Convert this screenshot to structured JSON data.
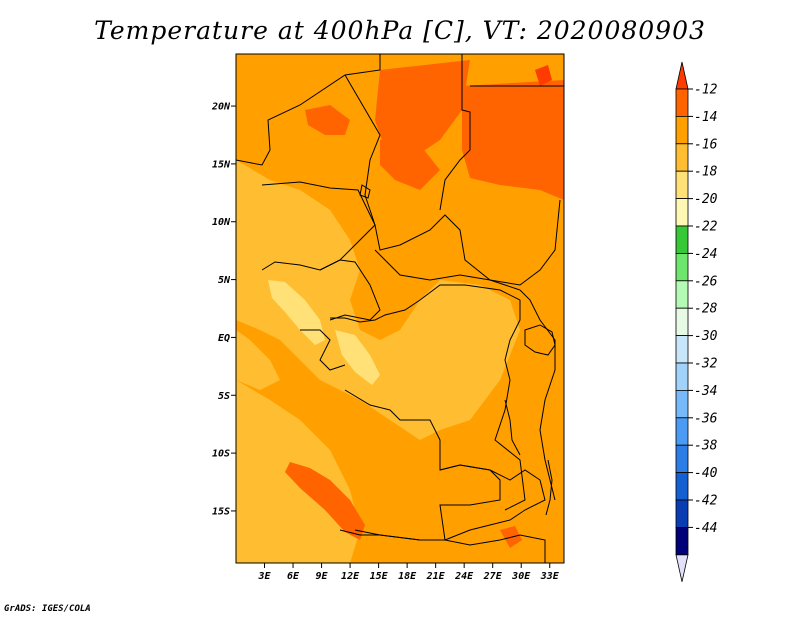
{
  "title": "Temperature at 400hPa [C], VT: 2020080903",
  "credit": "GrADS: IGES/COLA",
  "map": {
    "lat_range": [
      -19.5,
      24.5
    ],
    "lon_range": [
      0,
      34.5
    ],
    "lat_ticks": [
      {
        "value": 20,
        "label": "20N"
      },
      {
        "value": 15,
        "label": "15N"
      },
      {
        "value": 10,
        "label": "10N"
      },
      {
        "value": 5,
        "label": "5N"
      },
      {
        "value": 0,
        "label": "EQ"
      },
      {
        "value": -5,
        "label": "5S"
      },
      {
        "value": -10,
        "label": "10S"
      },
      {
        "value": -15,
        "label": "15S"
      }
    ],
    "lon_ticks": [
      {
        "value": 3,
        "label": "3E"
      },
      {
        "value": 6,
        "label": "6E"
      },
      {
        "value": 9,
        "label": "9E"
      },
      {
        "value": 12,
        "label": "12E"
      },
      {
        "value": 15,
        "label": "15E"
      },
      {
        "value": 18,
        "label": "18E"
      },
      {
        "value": 21,
        "label": "21E"
      },
      {
        "value": 24,
        "label": "24E"
      },
      {
        "value": 27,
        "label": "27E"
      },
      {
        "value": 30,
        "label": "30E"
      },
      {
        "value": 33,
        "label": "33E"
      }
    ]
  },
  "colorbar": {
    "labels": [
      "-12",
      "-14",
      "-16",
      "-18",
      "-20",
      "-22",
      "-24",
      "-26",
      "-28",
      "-30",
      "-32",
      "-34",
      "-36",
      "-38",
      "-40",
      "-42",
      "-44"
    ],
    "colors": [
      "#ff3c00",
      "#ff6400",
      "#ffa000",
      "#ffbe32",
      "#ffe178",
      "#fff7b4",
      "#37c837",
      "#6ee66e",
      "#b4fab4",
      "#e6fae6",
      "#c8e6fa",
      "#a0d2fa",
      "#78b9fa",
      "#4b9bf5",
      "#2d7de6",
      "#1460d2",
      "#0a3cb4",
      "#000078",
      "#e1e1fa"
    ]
  }
}
